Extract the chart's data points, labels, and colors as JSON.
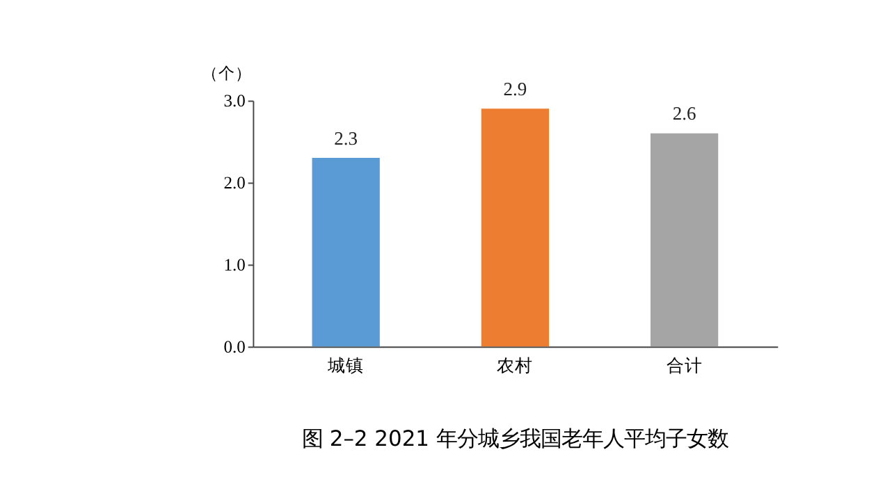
{
  "chart_data": {
    "type": "bar",
    "title": "图 2–2 2021 年分城乡我国老年人平均子女数",
    "ylabel": "（个）",
    "categories": [
      "城镇",
      "农村",
      "合计"
    ],
    "values": [
      2.3,
      2.9,
      2.6
    ],
    "colors": [
      "#5b9bd5",
      "#ed7d31",
      "#a5a5a5"
    ],
    "ylim": [
      0,
      3.0
    ],
    "yticks": [
      {
        "value": 0,
        "label": "0.0"
      },
      {
        "value": 1,
        "label": "1.0"
      },
      {
        "value": 2,
        "label": "2.0"
      },
      {
        "value": 3,
        "label": "3.0"
      }
    ],
    "data_labels": true,
    "grid": false
  }
}
